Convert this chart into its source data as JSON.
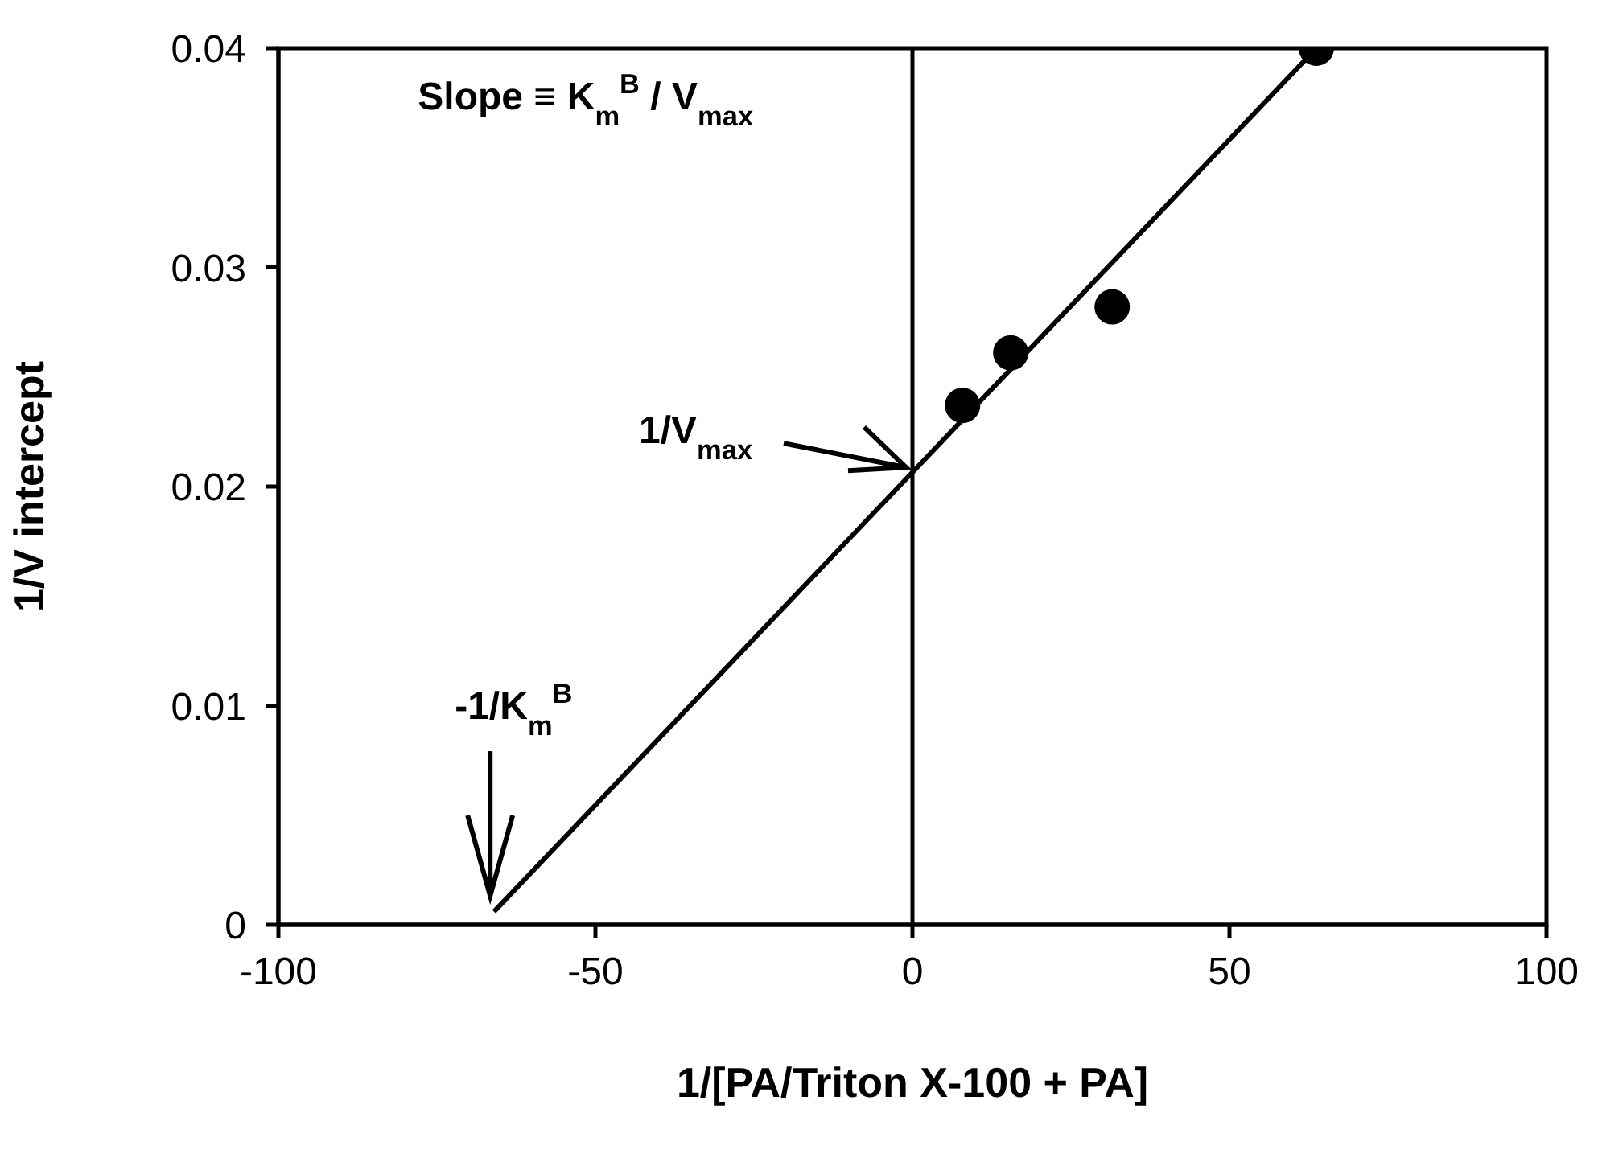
{
  "chart_data": {
    "type": "scatter",
    "xlabel": "1/[PA/Triton X-100 + PA]",
    "ylabel": "1/V intercept",
    "xlim": [
      -100,
      100
    ],
    "xticks": [
      -100,
      -50,
      0,
      50,
      100
    ],
    "ylim": [
      0,
      0.04
    ],
    "yticks": [
      0,
      0.01,
      0.02,
      0.03,
      0.04
    ],
    "grid": false,
    "marker": "circle",
    "series": [
      {
        "color": "#000000",
        "x": [
          7.9,
          15.5,
          31.5,
          63.7
        ],
        "values": [
          0.0237,
          0.0261,
          0.0282,
          0.04
        ]
      },
      {
        "type": "line",
        "color": "#000000",
        "marker": "none",
        "x": [
          -66,
          63.7
        ],
        "values": [
          0.0006,
          0.04
        ]
      }
    ],
    "ref_lines": [
      {
        "axis": "x",
        "value": 0,
        "color": "#000000"
      }
    ],
    "annotations": [
      "Slope ≡ K$_{m}$$^{B}$ / V$_{max}$",
      {
        "text": "1/V$_{max}$",
        "x": 0,
        "y": 0.0208
      },
      "-1/K$_{m}$$^{B}$"
    ]
  }
}
